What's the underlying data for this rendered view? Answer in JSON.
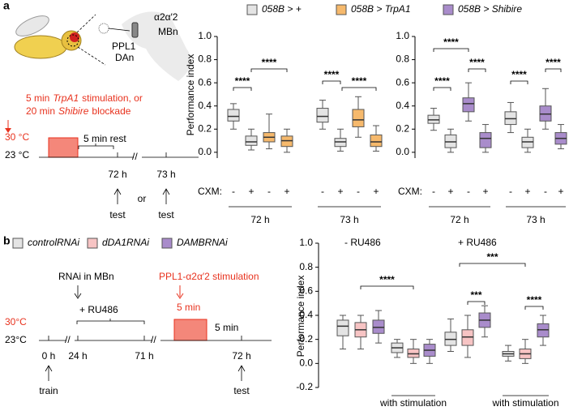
{
  "panels": {
    "a": {
      "label": "a",
      "cell_labels": [
        "PPL1",
        "DAn"
      ],
      "neuron_labels": [
        "α2α′2",
        "MBn"
      ],
      "protocol": [
        "5 min",
        "TrpA1",
        "stimulation, or",
        "20 min",
        "Shibire",
        "blockade"
      ],
      "temperatures": [
        "30 °C",
        "23 °C"
      ],
      "rest": "5 min rest",
      "times": [
        "72 h",
        "73 h"
      ],
      "or": "or",
      "tests": [
        "test",
        "test"
      ]
    },
    "b": {
      "label": "b",
      "rnai": "RNAi in MBn",
      "drug": "+ RU486",
      "stimulation": "PPL1-α2α′2 stimulation",
      "stim_duration": "5 min",
      "interval": "5 min",
      "temperatures": [
        "30°C",
        "23°C"
      ],
      "times": [
        "0 h",
        "24 h",
        "71 h",
        "72 h"
      ],
      "events": [
        "train",
        "test"
      ]
    }
  },
  "chart_data": [
    {
      "type": "box",
      "y_label": "Performance index",
      "ylim": [
        -0.05,
        1.0
      ],
      "yticks": [
        {
          "value": 0,
          "label": "0.0"
        },
        0.2,
        0.4,
        0.6,
        0.8,
        {
          "value": 1,
          "label": "1.0"
        }
      ],
      "row_label": "CXM:",
      "categories": [
        "-",
        "+",
        "-",
        "+",
        "-",
        "+",
        "-",
        "+"
      ],
      "groups": [
        "72 h",
        "73 h"
      ],
      "series": [
        {
          "name": "058B > +",
          "color": "#e4e4e4",
          "median": [
            0.31,
            0.09,
            null,
            null,
            0.31,
            0.09,
            null,
            null
          ],
          "q1": [
            0.27,
            0.06,
            null,
            null,
            0.26,
            0.05,
            null,
            null
          ],
          "q3": [
            0.37,
            0.14,
            null,
            null,
            0.38,
            0.12,
            null,
            null
          ],
          "whisker_low": [
            0.2,
            0.02,
            null,
            null,
            0.2,
            0.01,
            null,
            null
          ],
          "whisker_high": [
            0.42,
            0.2,
            null,
            null,
            0.45,
            0.2,
            null,
            null
          ]
        },
        {
          "name": "058B > TrpA1",
          "color": "#f6b96c",
          "median": [
            null,
            null,
            0.13,
            0.1,
            null,
            null,
            0.28,
            0.09
          ],
          "q1": [
            null,
            null,
            0.09,
            0.05,
            null,
            null,
            0.22,
            0.05
          ],
          "q3": [
            null,
            null,
            0.17,
            0.14,
            null,
            null,
            0.37,
            0.15
          ],
          "whisker_low": [
            null,
            null,
            0.03,
            0.0,
            null,
            null,
            0.13,
            0.01
          ],
          "whisker_high": [
            null,
            null,
            0.33,
            0.2,
            null,
            null,
            0.48,
            0.23
          ]
        }
      ],
      "annotations": [
        "****",
        "****",
        "****",
        "****"
      ]
    },
    {
      "type": "box",
      "ylim": [
        -0.05,
        1.0
      ],
      "yticks": [
        {
          "value": 0,
          "label": "0.0"
        },
        0.2,
        0.4,
        0.6,
        0.8,
        {
          "value": 1,
          "label": "1.0"
        }
      ],
      "row_label": "CXM:",
      "categories": [
        "-",
        "+",
        "-",
        "+",
        "-",
        "+",
        "-",
        "+"
      ],
      "groups": [
        "72 h",
        "73 h"
      ],
      "series": [
        {
          "color": "#e4e4e4",
          "median": [
            0.28,
            0.09,
            null,
            null,
            0.29,
            0.09,
            null,
            null
          ],
          "q1": [
            0.25,
            0.04,
            null,
            null,
            0.24,
            0.04,
            null,
            null
          ],
          "q3": [
            0.32,
            0.15,
            null,
            null,
            0.35,
            0.13,
            null,
            null
          ],
          "whisker_low": [
            0.19,
            0.0,
            null,
            null,
            0.17,
            0.0,
            null,
            null
          ],
          "whisker_high": [
            0.38,
            0.2,
            null,
            null,
            0.43,
            0.2,
            null,
            null
          ]
        },
        {
          "name": "058B > Shibire",
          "color": "#a98ccb",
          "median": [
            null,
            null,
            0.42,
            0.12,
            null,
            null,
            0.33,
            0.12
          ],
          "q1": [
            null,
            null,
            0.35,
            0.04,
            null,
            null,
            0.27,
            0.07
          ],
          "q3": [
            null,
            null,
            0.47,
            0.17,
            null,
            null,
            0.4,
            0.17
          ],
          "whisker_low": [
            null,
            null,
            0.27,
            0.0,
            null,
            null,
            0.2,
            0.03
          ],
          "whisker_high": [
            null,
            null,
            0.6,
            0.24,
            null,
            null,
            0.55,
            0.24
          ]
        }
      ],
      "annotations": [
        "****",
        "****",
        "****",
        "****",
        "****"
      ]
    },
    {
      "type": "box",
      "y_label": "Performance index",
      "ylim": [
        -0.2,
        1.0
      ],
      "yticks": [
        -0.2,
        {
          "value": 0,
          "label": "0.0"
        },
        0.2,
        0.4,
        0.6,
        0.8,
        {
          "value": 1,
          "label": "1.0"
        }
      ],
      "groups": [
        "- RU486",
        "+ RU486"
      ],
      "subgroup_labels": [
        "with stimulation",
        "with stimulation"
      ],
      "series": [
        {
          "name": "controlRNAi",
          "color": "#e4e4e4",
          "median": [
            0.31,
            null,
            null,
            0.13,
            null,
            null,
            0.2,
            null,
            null,
            0.08,
            null,
            null
          ],
          "q1": [
            0.23,
            null,
            null,
            0.09,
            null,
            null,
            0.15,
            null,
            null,
            0.06,
            null,
            null
          ],
          "q3": [
            0.36,
            null,
            null,
            0.17,
            null,
            null,
            0.26,
            null,
            null,
            0.1,
            null,
            null
          ],
          "whisker_low": [
            0.12,
            null,
            null,
            0.05,
            null,
            null,
            0.1,
            null,
            null,
            0.02,
            null,
            null
          ],
          "whisker_high": [
            0.4,
            null,
            null,
            0.2,
            null,
            null,
            0.37,
            null,
            null,
            0.15,
            null,
            null
          ]
        },
        {
          "name": "dDA1RNAi",
          "color": "#f7c4c4",
          "median": [
            null,
            0.28,
            null,
            null,
            0.08,
            null,
            null,
            0.22,
            null,
            null,
            0.08,
            null
          ],
          "q1": [
            null,
            0.22,
            null,
            null,
            0.05,
            null,
            null,
            0.15,
            null,
            null,
            0.04,
            null
          ],
          "q3": [
            null,
            0.34,
            null,
            null,
            0.12,
            null,
            null,
            0.28,
            null,
            null,
            0.12,
            null
          ],
          "whisker_low": [
            null,
            0.12,
            null,
            null,
            0.0,
            null,
            null,
            0.05,
            null,
            null,
            0.0,
            null
          ],
          "whisker_high": [
            null,
            0.4,
            null,
            null,
            0.2,
            null,
            null,
            0.4,
            null,
            null,
            0.2,
            null
          ]
        },
        {
          "name": "DAMBRNAi",
          "color": "#a98ccb",
          "median": [
            null,
            null,
            0.3,
            null,
            null,
            0.11,
            null,
            null,
            0.36,
            null,
            null,
            0.28
          ],
          "q1": [
            null,
            null,
            0.25,
            null,
            null,
            0.06,
            null,
            null,
            0.3,
            null,
            null,
            0.22
          ],
          "q3": [
            null,
            null,
            0.36,
            null,
            null,
            0.16,
            null,
            null,
            0.42,
            null,
            null,
            0.33
          ],
          "whisker_low": [
            null,
            null,
            0.17,
            null,
            null,
            0.0,
            null,
            null,
            0.22,
            null,
            null,
            0.15
          ],
          "whisker_high": [
            null,
            null,
            0.44,
            null,
            null,
            0.2,
            null,
            null,
            0.48,
            null,
            null,
            0.4
          ]
        }
      ],
      "annotations": [
        "****",
        "***",
        "***",
        "****"
      ]
    }
  ]
}
